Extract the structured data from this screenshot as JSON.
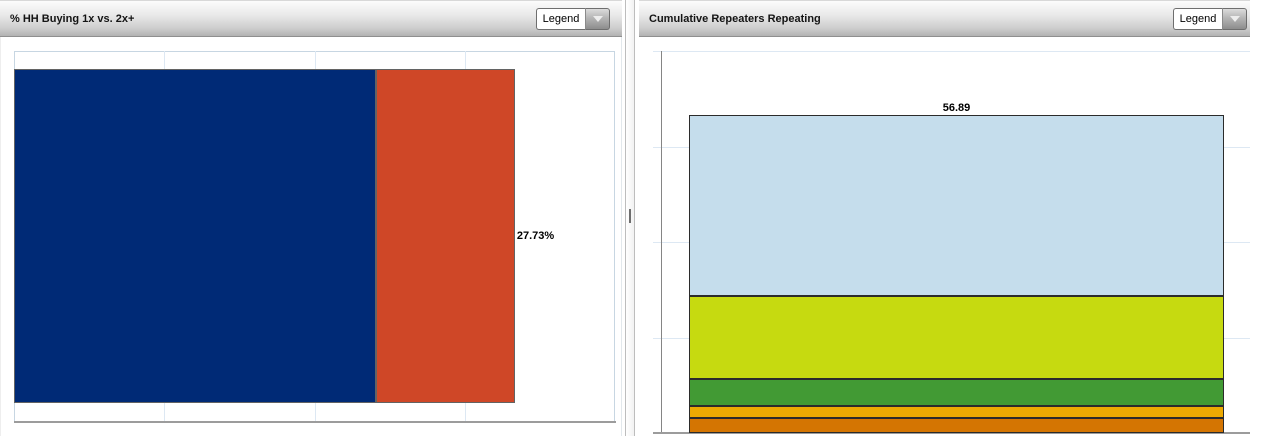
{
  "panels": {
    "left": {
      "title": "% HH Buying 1x vs. 2x+",
      "legend_button_label": "Legend"
    },
    "right": {
      "title": "Cumulative Repeaters Repeating",
      "legend_button_label": "Legend"
    }
  },
  "chart_data": [
    {
      "type": "bar",
      "orientation": "horizontal",
      "stacked": true,
      "title": "% HH Buying 1x vs. 2x+",
      "series": [
        {
          "value": 72.27,
          "label": "72.27%",
          "color": "#002a76"
        },
        {
          "value": 27.73,
          "label": "27.73%",
          "color": "#cf4727"
        }
      ],
      "xlim": [
        0,
        120
      ],
      "gridline_step": 30,
      "grid": true,
      "legend_position": "collapsed-dropdown",
      "segment_border_color": "#636363",
      "gridline_color": "#dde8f3",
      "axis_color": "#9c9c9c"
    },
    {
      "type": "bar",
      "orientation": "vertical",
      "stacked": true,
      "stack_order": "top-to-bottom",
      "title": "Cumulative Repeaters Repeating",
      "series": [
        {
          "value": 56.89,
          "label": "56.89",
          "color": "#c5ddec"
        },
        {
          "value": 26.02,
          "label": "26.02",
          "color": "#c6da10"
        },
        {
          "value": 8.46,
          "label": "8.46",
          "color": "#429a34"
        },
        {
          "value": 3.77,
          "label": "3.77",
          "color": "#edaa02"
        },
        {
          "value": 4.85,
          "label": "4.85",
          "color": "#d47502"
        }
      ],
      "ylim": [
        0,
        120
      ],
      "gridline_step": 30,
      "grid": true,
      "legend_position": "collapsed-dropdown",
      "segment_border_color": "#2b2b2b",
      "gridline_color": "#dde8f3",
      "axis_color": "#9c9c9c"
    }
  ]
}
